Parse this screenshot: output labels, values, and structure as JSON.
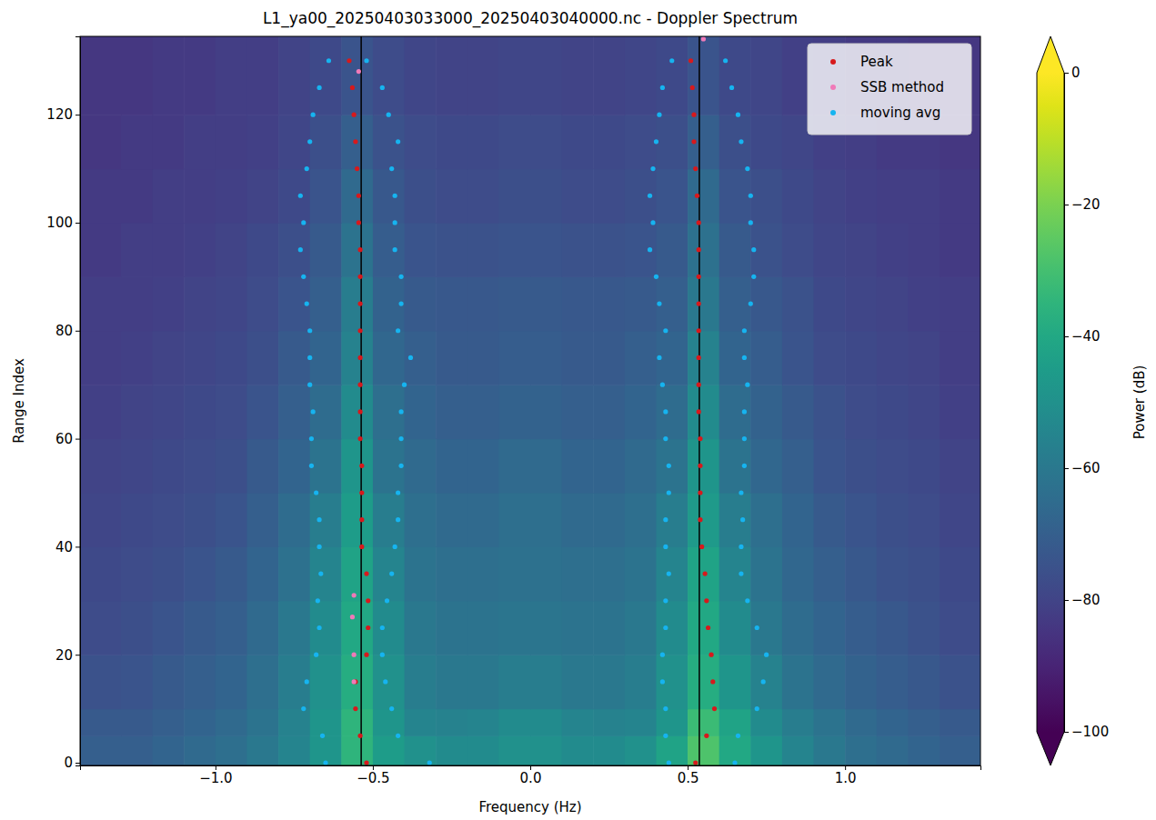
{
  "chart_data": {
    "type": "scatter",
    "title": "L1_ya00_20250403033000_20250403040000.nc - Doppler Spectrum",
    "x_label": "Frequency (Hz)",
    "y_label": "Range Index",
    "xlim": [
      -1.43,
      1.43
    ],
    "ylim": [
      -0.5,
      134.5
    ],
    "xticks": [
      {
        "value": -1.0,
        "label": "−1.0"
      },
      {
        "value": -0.5,
        "label": "−0.5"
      },
      {
        "value": 0,
        "label": "0.0"
      },
      {
        "value": 0.5,
        "label": "0.5"
      },
      {
        "value": 1.0,
        "label": "1.0"
      }
    ],
    "yticks": [
      0,
      20,
      40,
      60,
      80,
      100,
      120
    ],
    "grid": false,
    "legend": "upper right",
    "vlines": [
      -0.537,
      0.537
    ],
    "x_edges": [
      -1.43,
      -1.3,
      -1.2,
      -1.1,
      -1.0,
      -0.9,
      -0.8,
      -0.7,
      -0.6,
      -0.5,
      -0.4,
      -0.3,
      -0.2,
      -0.1,
      0,
      0.1,
      0.2,
      0.3,
      0.4,
      0.5,
      0.6,
      0.7,
      0.8,
      0.9,
      1.0,
      1.1,
      1.2,
      1.3,
      1.43
    ],
    "y_edges": [
      -0.5,
      5,
      10,
      20,
      30,
      40,
      50,
      60,
      70,
      80,
      90,
      100,
      110,
      120,
      134.5
    ],
    "cells": [
      [
        -70,
        -70,
        -68,
        -66,
        -64,
        -60,
        -55,
        -48,
        -35,
        -45,
        -50,
        -52,
        -52,
        -50,
        -50,
        -52,
        -52,
        -50,
        -42,
        -28,
        -40,
        -48,
        -55,
        -60,
        -64,
        -66,
        -68,
        -70
      ],
      [
        -72,
        -72,
        -70,
        -68,
        -66,
        -62,
        -56,
        -48,
        -35,
        -48,
        -55,
        -56,
        -55,
        -52,
        -52,
        -55,
        -56,
        -55,
        -48,
        -32,
        -42,
        -52,
        -58,
        -62,
        -66,
        -68,
        -70,
        -72
      ],
      [
        -75,
        -74,
        -72,
        -70,
        -68,
        -64,
        -58,
        -50,
        -38,
        -50,
        -58,
        -60,
        -60,
        -58,
        -58,
        -60,
        -60,
        -58,
        -50,
        -38,
        -48,
        -56,
        -62,
        -66,
        -69,
        -71,
        -73,
        -75
      ],
      [
        -77,
        -76,
        -74,
        -72,
        -70,
        -66,
        -60,
        -52,
        -40,
        -52,
        -60,
        -62,
        -62,
        -61,
        -61,
        -62,
        -62,
        -60,
        -52,
        -40,
        -52,
        -60,
        -65,
        -68,
        -71,
        -73,
        -75,
        -77
      ],
      [
        -78,
        -77,
        -76,
        -74,
        -72,
        -68,
        -63,
        -55,
        -42,
        -55,
        -62,
        -64,
        -64,
        -63,
        -63,
        -64,
        -64,
        -62,
        -55,
        -42,
        -55,
        -62,
        -67,
        -70,
        -73,
        -75,
        -76,
        -78
      ],
      [
        -79,
        -78,
        -77,
        -76,
        -74,
        -70,
        -65,
        -58,
        -45,
        -58,
        -64,
        -66,
        -66,
        -64,
        -64,
        -66,
        -66,
        -64,
        -58,
        -46,
        -58,
        -64,
        -68,
        -72,
        -74,
        -76,
        -77,
        -79
      ],
      [
        -80,
        -79,
        -78,
        -77,
        -76,
        -72,
        -68,
        -62,
        -48,
        -62,
        -66,
        -68,
        -68,
        -66,
        -66,
        -68,
        -68,
        -66,
        -62,
        -48,
        -62,
        -67,
        -70,
        -74,
        -76,
        -77,
        -78,
        -80
      ],
      [
        -81,
        -80,
        -79,
        -78,
        -77,
        -74,
        -70,
        -65,
        -52,
        -64,
        -68,
        -70,
        -70,
        -69,
        -69,
        -70,
        -70,
        -68,
        -65,
        -52,
        -65,
        -69,
        -72,
        -75,
        -77,
        -78,
        -79,
        -81
      ],
      [
        -82,
        -81,
        -80,
        -79,
        -78,
        -76,
        -72,
        -68,
        -56,
        -67,
        -70,
        -72,
        -72,
        -71,
        -71,
        -72,
        -72,
        -70,
        -68,
        -56,
        -68,
        -71,
        -74,
        -77,
        -78,
        -79,
        -80,
        -82
      ],
      [
        -82,
        -82,
        -81,
        -80,
        -79,
        -77,
        -74,
        -70,
        -58,
        -69,
        -72,
        -73,
        -73,
        -72,
        -72,
        -73,
        -73,
        -72,
        -70,
        -60,
        -70,
        -73,
        -75,
        -78,
        -79,
        -80,
        -81,
        -82
      ],
      [
        -83,
        -82,
        -82,
        -81,
        -80,
        -78,
        -76,
        -72,
        -62,
        -71,
        -74,
        -75,
        -75,
        -74,
        -74,
        -75,
        -75,
        -74,
        -72,
        -63,
        -72,
        -75,
        -77,
        -79,
        -80,
        -81,
        -82,
        -83
      ],
      [
        -83,
        -83,
        -82,
        -82,
        -81,
        -80,
        -78,
        -74,
        -66,
        -73,
        -76,
        -77,
        -77,
        -76,
        -76,
        -77,
        -77,
        -76,
        -74,
        -66,
        -74,
        -76,
        -78,
        -80,
        -81,
        -82,
        -82,
        -83
      ],
      [
        -84,
        -83,
        -83,
        -82,
        -82,
        -81,
        -79,
        -76,
        -70,
        -75,
        -77,
        -78,
        -78,
        -77,
        -77,
        -78,
        -78,
        -77,
        -76,
        -70,
        -76,
        -78,
        -79,
        -81,
        -82,
        -83,
        -83,
        -84
      ],
      [
        -84,
        -84,
        -83,
        -83,
        -82,
        -82,
        -80,
        -78,
        -74,
        -77,
        -79,
        -80,
        -80,
        -79,
        -79,
        -80,
        -80,
        -79,
        -78,
        -74,
        -78,
        -79,
        -81,
        -82,
        -83,
        -83,
        -84,
        -84
      ]
    ],
    "colorbar": {
      "label": "Power (dB)",
      "lim": [
        -100,
        0
      ],
      "ticks": [
        {
          "value": -100,
          "label": "−100"
        },
        {
          "value": -80,
          "label": "−80"
        },
        {
          "value": -60,
          "label": "−60"
        },
        {
          "value": -40,
          "label": "−40"
        },
        {
          "value": -20,
          "label": "−20"
        },
        0
      ]
    },
    "series": [
      {
        "name": "Peak",
        "color": "#d7191c",
        "marker": "circle",
        "x": [
          -0.52,
          -0.54,
          -0.555,
          -0.555,
          -0.52,
          -0.515,
          -0.515,
          -0.52,
          -0.535,
          -0.535,
          -0.535,
          -0.535,
          -0.54,
          -0.54,
          -0.54,
          -0.54,
          -0.54,
          -0.54,
          -0.54,
          -0.54,
          -0.545,
          -0.545,
          -0.55,
          -0.555,
          -0.56,
          -0.565,
          -0.575,
          0.525,
          0.56,
          0.585,
          0.58,
          0.575,
          0.565,
          0.56,
          0.555,
          0.545,
          0.54,
          0.54,
          0.54,
          0.54,
          0.535,
          0.535,
          0.535,
          0.535,
          0.535,
          0.535,
          0.535,
          0.535,
          0.53,
          0.525,
          0.52,
          0.52,
          0.515,
          0.51
        ],
        "values": [
          0,
          5,
          10,
          15,
          20,
          25,
          30,
          35,
          40,
          45,
          50,
          55,
          60,
          65,
          70,
          75,
          80,
          85,
          90,
          95,
          100,
          105,
          110,
          115,
          120,
          125,
          130,
          0,
          5,
          10,
          15,
          20,
          25,
          30,
          35,
          40,
          45,
          50,
          55,
          60,
          65,
          70,
          75,
          80,
          85,
          90,
          95,
          100,
          105,
          110,
          115,
          120,
          125,
          130
        ]
      },
      {
        "name": "SSB method",
        "color": "#f07ab8",
        "marker": "circle",
        "x": [
          -0.56,
          -0.56,
          -0.565,
          -0.56,
          -0.545,
          0.55
        ],
        "values": [
          15,
          20,
          27,
          31,
          128,
          134
        ]
      },
      {
        "name": "moving avg",
        "color": "#16b4f0",
        "marker": "circle",
        "x": [
          -0.65,
          -0.66,
          -0.72,
          -0.71,
          -0.68,
          -0.67,
          -0.675,
          -0.665,
          -0.67,
          -0.67,
          -0.68,
          -0.695,
          -0.695,
          -0.69,
          -0.7,
          -0.7,
          -0.7,
          -0.71,
          -0.72,
          -0.73,
          -0.72,
          -0.73,
          -0.71,
          -0.7,
          -0.69,
          -0.67,
          -0.64,
          -0.32,
          -0.42,
          -0.44,
          -0.46,
          -0.47,
          -0.47,
          -0.455,
          -0.44,
          -0.43,
          -0.42,
          -0.42,
          -0.41,
          -0.41,
          -0.41,
          -0.4,
          -0.38,
          -0.42,
          -0.41,
          -0.41,
          -0.43,
          -0.43,
          -0.43,
          -0.44,
          -0.42,
          -0.45,
          -0.47,
          -0.52,
          0.44,
          0.43,
          0.43,
          0.42,
          0.42,
          0.43,
          0.43,
          0.44,
          0.43,
          0.43,
          0.44,
          0.44,
          0.43,
          0.43,
          0.42,
          0.41,
          0.43,
          0.41,
          0.4,
          0.38,
          0.39,
          0.38,
          0.39,
          0.4,
          0.41,
          0.42,
          0.45,
          0.65,
          0.66,
          0.72,
          0.74,
          0.75,
          0.72,
          0.69,
          0.67,
          0.67,
          0.675,
          0.67,
          0.68,
          0.68,
          0.68,
          0.69,
          0.68,
          0.68,
          0.7,
          0.71,
          0.71,
          0.7,
          0.7,
          0.69,
          0.67,
          0.66,
          0.64,
          0.62
        ],
        "values": [
          0,
          5,
          10,
          15,
          20,
          25,
          30,
          35,
          40,
          45,
          50,
          55,
          60,
          65,
          70,
          75,
          80,
          85,
          90,
          95,
          100,
          105,
          110,
          115,
          120,
          125,
          130,
          0,
          5,
          10,
          15,
          20,
          25,
          30,
          35,
          40,
          45,
          50,
          55,
          60,
          65,
          70,
          75,
          80,
          85,
          90,
          95,
          100,
          105,
          110,
          115,
          120,
          125,
          130,
          0,
          5,
          10,
          15,
          20,
          25,
          30,
          35,
          40,
          45,
          50,
          55,
          60,
          65,
          70,
          75,
          80,
          85,
          90,
          95,
          100,
          105,
          110,
          115,
          120,
          125,
          130,
          0,
          5,
          10,
          15,
          20,
          25,
          30,
          35,
          40,
          45,
          50,
          55,
          60,
          65,
          70,
          75,
          80,
          85,
          90,
          95,
          100,
          105,
          110,
          115,
          120,
          125,
          130
        ]
      }
    ]
  }
}
